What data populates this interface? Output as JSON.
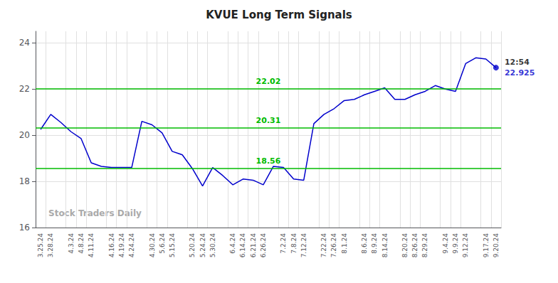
{
  "chart_data": {
    "type": "line",
    "title": "KVUE Long Term Signals",
    "categories": [
      "3.25.24",
      "3.28.24",
      null,
      "4.3.24",
      "4.8.24",
      "4.11.24",
      null,
      "4.16.24",
      "4.19.24",
      "4.24.24",
      null,
      "4.30.24",
      "5.6.24",
      "5.15.24",
      null,
      "5.20.24",
      "5.24.24",
      "5.30.24",
      null,
      "6.4.24",
      "6.14.24",
      "6.21.24",
      "6.26.24",
      null,
      "7.2.24",
      "7.8.24",
      "7.12.24",
      null,
      "7.22.24",
      "7.26.24",
      "8.1.24",
      null,
      "8.6.24",
      "8.9.24",
      "8.14.24",
      null,
      "8.20.24",
      "8.26.24",
      "8.29.24",
      null,
      "9.4.24",
      "9.9.24",
      "9.12.24",
      null,
      "9.17.24",
      "9.20.24"
    ],
    "values": [
      20.25,
      20.9,
      20.55,
      20.15,
      19.85,
      18.8,
      18.65,
      18.6,
      18.6,
      18.6,
      20.6,
      20.45,
      20.1,
      19.3,
      19.15,
      18.55,
      17.8,
      18.6,
      18.25,
      17.85,
      18.1,
      18.05,
      17.85,
      18.65,
      18.6,
      18.1,
      18.05,
      20.5,
      20.9,
      21.15,
      21.5,
      21.55,
      21.75,
      21.9,
      22.05,
      21.55,
      21.55,
      21.75,
      21.9,
      22.15,
      22.0,
      21.9,
      23.1,
      23.35,
      23.3,
      22.925
    ],
    "color": "#0000cc",
    "hlines": [
      {
        "y": 22.02,
        "label": "22.02",
        "color": "#00bb00"
      },
      {
        "y": 20.31,
        "label": "20.31",
        "color": "#00bb00"
      },
      {
        "y": 18.56,
        "label": "18.56",
        "color": "#00bb00"
      }
    ],
    "annotations": [
      "12:54",
      "22.925"
    ],
    "watermark": "Stock Traders Daily",
    "ylim": [
      16,
      24.5
    ],
    "yticks": [
      16,
      18,
      20,
      22,
      24
    ],
    "grid": true
  }
}
